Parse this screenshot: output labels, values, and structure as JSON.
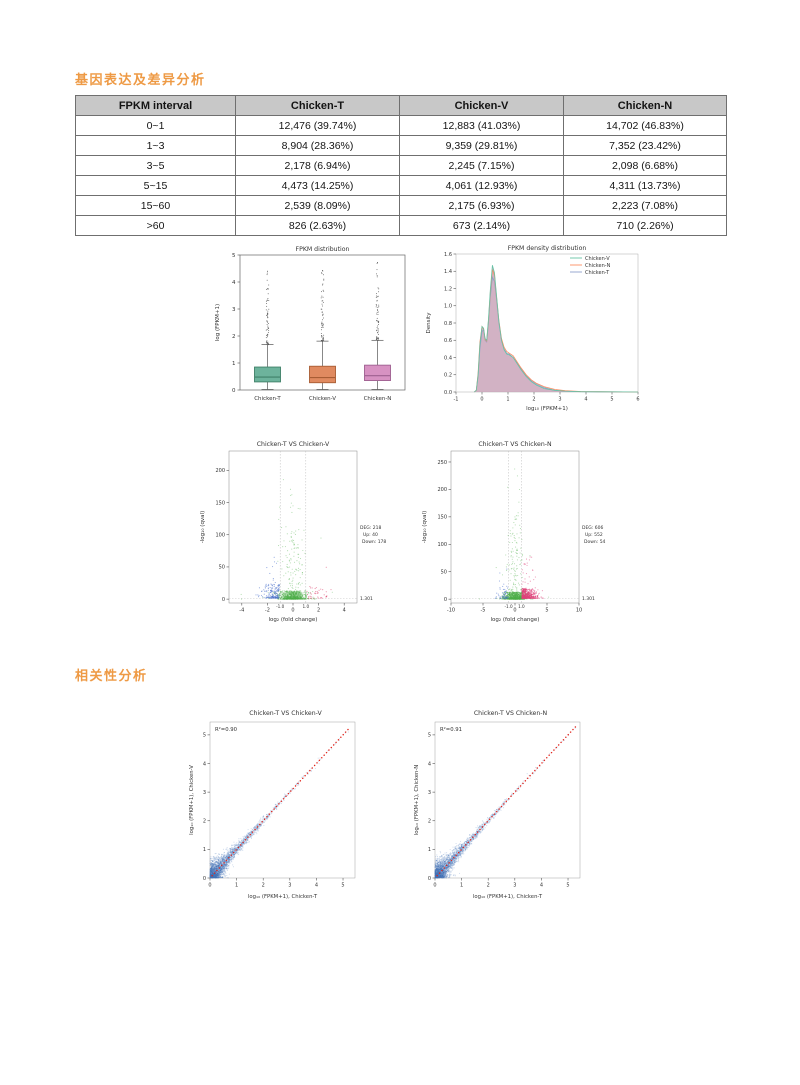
{
  "sections": {
    "gene_expression": "基因表达及差异分析",
    "correlation": "相关性分析"
  },
  "table": {
    "headers": [
      "FPKM interval",
      "Chicken-T",
      "Chicken-V",
      "Chicken-N"
    ],
    "rows": [
      [
        "0~1",
        "12,476 (39.74%)",
        "12,883 (41.03%)",
        "14,702 (46.83%)"
      ],
      [
        "1~3",
        "8,904 (28.36%)",
        "9,359 (29.81%)",
        "7,352 (23.42%)"
      ],
      [
        "3~5",
        "2,178 (6.94%)",
        "2,245 (7.15%)",
        "2,098 (6.68%)"
      ],
      [
        "5~15",
        "4,473 (14.25%)",
        "4,061 (12.93%)",
        "4,311 (13.73%)"
      ],
      [
        "15~60",
        "2,539 (8.09%)",
        "2,175 (6.93%)",
        "2,223 (7.08%)"
      ],
      [
        ">60",
        "826 (2.63%)",
        "673 (2.14%)",
        "710 (2.26%)"
      ]
    ]
  },
  "chart_data": [
    {
      "type": "box",
      "title": "FPKM distribution",
      "ylabel": "log (FPKM+1)",
      "ylim": [
        0,
        5
      ],
      "yticks": [
        0,
        1,
        2,
        3,
        4,
        5
      ],
      "categories": [
        "Chicken-T",
        "Chicken-V",
        "Chicken-N"
      ],
      "series": [
        {
          "name": "Chicken-T",
          "fill": "#6db39c",
          "edge": "#3f8068",
          "q1": 0.3,
          "median": 0.48,
          "q3": 0.85,
          "whisker_low": 0.02,
          "whisker_high": 1.68,
          "outlier_max": 4.4
        },
        {
          "name": "Chicken-V",
          "fill": "#e08a60",
          "edge": "#a85c34",
          "q1": 0.27,
          "median": 0.46,
          "q3": 0.88,
          "whisker_low": 0.02,
          "whisker_high": 1.81,
          "outlier_max": 4.42
        },
        {
          "name": "Chicken-N",
          "fill": "#d792c2",
          "edge": "#9e5f90",
          "q1": 0.35,
          "median": 0.53,
          "q3": 0.92,
          "whisker_low": 0.02,
          "whisker_high": 1.84,
          "outlier_max": 4.72
        }
      ],
      "seed": 11
    },
    {
      "type": "area",
      "title": "FPKM density distribution",
      "xlabel": "log₁₀ (FPKM+1)",
      "ylabel": "Density",
      "xlim": [
        -1,
        6
      ],
      "ylim": [
        0,
        1.6
      ],
      "xticks": [
        -1,
        0,
        1,
        2,
        3,
        4,
        5,
        6
      ],
      "yticks": [
        0,
        0.2,
        0.4,
        0.6,
        0.8,
        1.0,
        1.2,
        1.4,
        1.6
      ],
      "fill_color": "#c79fb5",
      "x": [
        -0.3,
        -0.22,
        -0.15,
        -0.08,
        0,
        0.06,
        0.12,
        0.18,
        0.25,
        0.32,
        0.4,
        0.48,
        0.55,
        0.65,
        0.75,
        0.85,
        0.95,
        1.05,
        1.2,
        1.35,
        1.5,
        1.7,
        1.9,
        2.1,
        2.4,
        2.8,
        3.2,
        3.8,
        4.5,
        5.5,
        6
      ],
      "series": [
        {
          "name": "Chicken-V",
          "color": "#66c2a5",
          "values": [
            0,
            0.02,
            0.2,
            0.55,
            0.76,
            0.74,
            0.62,
            0.6,
            0.85,
            1.18,
            1.47,
            1.38,
            1.15,
            0.82,
            0.6,
            0.49,
            0.44,
            0.43,
            0.4,
            0.33,
            0.26,
            0.18,
            0.12,
            0.08,
            0.04,
            0.02,
            0.01,
            0.004,
            0.002,
            0.001,
            0
          ]
        },
        {
          "name": "Chicken-N",
          "color": "#fc8d62",
          "values": [
            0,
            0.02,
            0.22,
            0.58,
            0.76,
            0.73,
            0.61,
            0.59,
            0.83,
            1.15,
            1.42,
            1.35,
            1.13,
            0.83,
            0.62,
            0.52,
            0.47,
            0.45,
            0.42,
            0.35,
            0.28,
            0.2,
            0.14,
            0.1,
            0.06,
            0.03,
            0.015,
            0.006,
            0.003,
            0.001,
            0
          ]
        },
        {
          "name": "Chicken-T",
          "color": "#8da0cb",
          "values": [
            0,
            0.02,
            0.18,
            0.5,
            0.7,
            0.72,
            0.6,
            0.58,
            0.8,
            1.1,
            1.33,
            1.28,
            1.1,
            0.8,
            0.6,
            0.5,
            0.45,
            0.44,
            0.4,
            0.34,
            0.27,
            0.19,
            0.13,
            0.09,
            0.05,
            0.02,
            0.01,
            0.005,
            0.002,
            0.001,
            0
          ]
        }
      ],
      "legend_position": "top-right"
    },
    {
      "type": "scatter",
      "variant": "volcano",
      "title": "Chicken-T VS Chicken-V",
      "xlabel": "log₂ (fold change)",
      "ylabel": "-log₁₀ (qval)",
      "xlim": [
        -5,
        5
      ],
      "ylim": [
        -6,
        230
      ],
      "xticks": [
        -4,
        -2,
        0,
        2,
        4
      ],
      "yticks": [
        0,
        50,
        100,
        150,
        200
      ],
      "thresholds": {
        "x": [
          -1,
          1
        ],
        "x_labels": [
          "-1.0",
          "1.0"
        ],
        "y": 1.301,
        "y_label": "1.301"
      },
      "deg": 218,
      "up": 40,
      "down": 178,
      "colors": {
        "ns": "#4daf4a",
        "up": "#d8315f",
        "down": "#4169c8"
      },
      "ns_sigma": 0.55,
      "sig_sigma": 0.8,
      "seed": 21
    },
    {
      "type": "scatter",
      "variant": "volcano",
      "title": "Chicken-T VS Chicken-N",
      "xlabel": "log₂ (fold change)",
      "ylabel": "-log₁₀ (qval)",
      "xlim": [
        -10,
        10
      ],
      "ylim": [
        -7,
        270
      ],
      "xticks": [
        -10,
        -5,
        0,
        5,
        10
      ],
      "yticks": [
        0,
        50,
        100,
        150,
        200,
        250
      ],
      "thresholds": {
        "x": [
          -1,
          1
        ],
        "x_labels": [
          "-1.0",
          "1.0"
        ],
        "y": 1.301,
        "y_label": "1.301"
      },
      "deg": 606,
      "up": 552,
      "down": 54,
      "colors": {
        "ns": "#4daf4a",
        "up": "#e0447c",
        "down": "#4169c8"
      },
      "ns_sigma": 0.85,
      "sig_sigma": 1.1,
      "seed": 22
    },
    {
      "type": "scatter",
      "title": "Chicken-T VS Chicken-V",
      "r2_label": "R²=0.90",
      "xlabel": "log₁₀ (FPKM+1), Chicken-T",
      "ylabel": "log₁₀ (FPKM+1), Chicken-V",
      "xlim": [
        0,
        5.45
      ],
      "ylim": [
        0,
        5.45
      ],
      "ticks": [
        0,
        1,
        2,
        3,
        4,
        5
      ],
      "point_color": "#4472b8",
      "line_color": "#e0241c",
      "line_max": 5.2,
      "seed": 31
    },
    {
      "type": "scatter",
      "title": "Chicken-T VS Chicken-N",
      "r2_label": "R²=0.91",
      "xlabel": "log₁₀ (FPKM+1), Chicken-T",
      "ylabel": "log₁₀ (FPKM+1), Chicken-N",
      "xlim": [
        0,
        5.45
      ],
      "ylim": [
        0,
        5.45
      ],
      "ticks": [
        0,
        1,
        2,
        3,
        4,
        5
      ],
      "point_color": "#4472b8",
      "line_color": "#e0241c",
      "line_max": 5.35,
      "seed": 32
    }
  ]
}
